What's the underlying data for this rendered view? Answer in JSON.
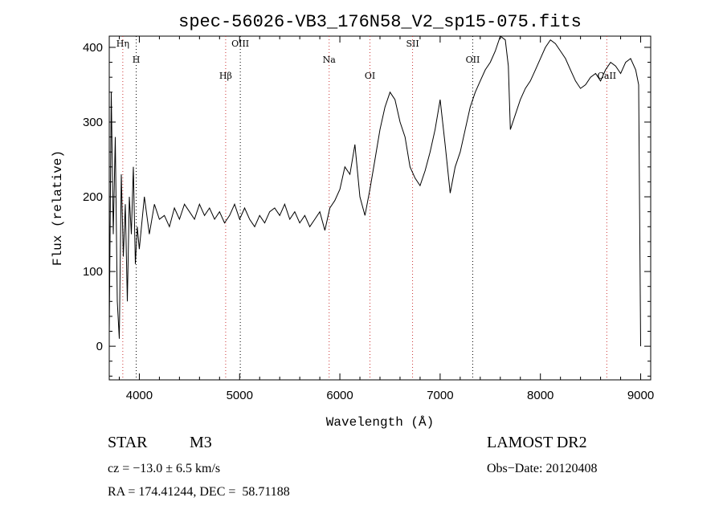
{
  "chart_data": {
    "type": "line",
    "title": "spec-56026-VB3_176N58_V2_sp15-075.fits",
    "xlabel": "Wavelength (Å)",
    "ylabel": "Flux (relative)",
    "xlim": [
      3700,
      9100
    ],
    "ylim": [
      -45,
      415
    ],
    "x_ticks": [
      4000,
      5000,
      6000,
      7000,
      8000,
      9000
    ],
    "y_ticks": [
      0,
      100,
      200,
      300,
      400
    ],
    "grid": false,
    "line_color": "#000000",
    "marker_color": "#cc3333",
    "series": [
      {
        "x": [
          3700,
          3720,
          3740,
          3760,
          3780,
          3800,
          3820,
          3840,
          3860,
          3880,
          3900,
          3920,
          3940,
          3960,
          3980,
          4000,
          4050,
          4100,
          4150,
          4200,
          4250,
          4300,
          4350,
          4400,
          4450,
          4500,
          4550,
          4600,
          4650,
          4700,
          4750,
          4800,
          4850,
          4900,
          4950,
          5000,
          5050,
          5100,
          5150,
          5200,
          5250,
          5300,
          5350,
          5400,
          5450,
          5500,
          5550,
          5600,
          5650,
          5700,
          5750,
          5800,
          5850,
          5900,
          5950,
          6000,
          6050,
          6100,
          6150,
          6200,
          6250,
          6300,
          6350,
          6400,
          6450,
          6500,
          6550,
          6600,
          6650,
          6700,
          6750,
          6800,
          6850,
          6900,
          6950,
          7000,
          7050,
          7100,
          7150,
          7200,
          7250,
          7300,
          7350,
          7400,
          7450,
          7500,
          7550,
          7600,
          7650,
          7680,
          7700,
          7750,
          7800,
          7850,
          7900,
          7950,
          8000,
          8050,
          8100,
          8150,
          8200,
          8250,
          8300,
          8350,
          8400,
          8450,
          8500,
          8550,
          8600,
          8650,
          8700,
          8750,
          8800,
          8850,
          8900,
          8950,
          8980,
          9000
        ],
        "values": [
          20,
          340,
          150,
          280,
          60,
          10,
          230,
          120,
          190,
          60,
          200,
          150,
          240,
          110,
          160,
          130,
          200,
          150,
          190,
          170,
          175,
          160,
          185,
          170,
          190,
          180,
          170,
          190,
          175,
          185,
          170,
          180,
          165,
          175,
          190,
          170,
          185,
          170,
          160,
          175,
          165,
          180,
          185,
          175,
          190,
          170,
          180,
          165,
          175,
          160,
          170,
          180,
          155,
          185,
          195,
          210,
          240,
          230,
          270,
          200,
          175,
          210,
          250,
          290,
          320,
          340,
          330,
          300,
          280,
          240,
          225,
          215,
          235,
          260,
          290,
          330,
          270,
          205,
          240,
          260,
          290,
          320,
          340,
          355,
          370,
          380,
          395,
          415,
          410,
          375,
          290,
          310,
          330,
          345,
          355,
          370,
          385,
          400,
          410,
          405,
          395,
          385,
          370,
          355,
          345,
          350,
          360,
          365,
          355,
          370,
          380,
          375,
          365,
          380,
          385,
          370,
          350,
          0
        ]
      }
    ],
    "line_markers": [
      {
        "label": "Hη",
        "x": 3835,
        "color": "#cc3333"
      },
      {
        "label": "H",
        "x": 3969,
        "color": "#000000"
      },
      {
        "label": "Hβ",
        "x": 4861,
        "color": "#cc3333"
      },
      {
        "label": "OIII",
        "x": 5007,
        "color": "#000000"
      },
      {
        "label": "Na",
        "x": 5893,
        "color": "#cc3333"
      },
      {
        "label": "OI",
        "x": 6300,
        "color": "#cc3333"
      },
      {
        "label": "SII",
        "x": 6725,
        "color": "#cc3333"
      },
      {
        "label": "OII",
        "x": 7325,
        "color": "#000000"
      },
      {
        "label": "CaII",
        "x": 8662,
        "color": "#cc3333"
      }
    ]
  },
  "info": {
    "type_label": "STAR",
    "subclass": "M3",
    "cz": "cz = −13.0 ± 6.5 km/s",
    "coords": "RA = 174.41244, DEC =  58.71188",
    "survey": "LAMOST DR2",
    "obs_date": "Obs−Date: 20120408"
  }
}
